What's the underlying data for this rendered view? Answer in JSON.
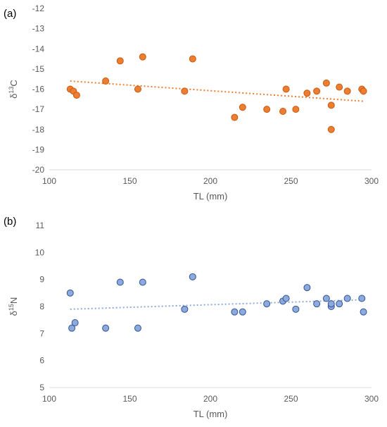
{
  "chart_data": [
    {
      "type": "scatter",
      "panel_label": "(a)",
      "xlabel": "TL (mm)",
      "ylabel": {
        "prefix": "δ",
        "sup": "13",
        "suffix": "C"
      },
      "xlim": [
        100,
        300
      ],
      "ylim": [
        -20,
        -12
      ],
      "xticks": [
        100,
        150,
        200,
        250,
        300
      ],
      "yticks": [
        -12,
        -13,
        -14,
        -15,
        -16,
        -17,
        -18,
        -19,
        -20
      ],
      "grid": false,
      "color": "#ED7D31",
      "stroke": "#C55A11",
      "trendline": {
        "type": "linear",
        "x": [
          113,
          295
        ],
        "y": [
          -15.6,
          -16.6
        ]
      },
      "series": [
        {
          "points": [
            [
              113,
              -16.0
            ],
            [
              115,
              -16.1
            ],
            [
              117,
              -16.3
            ],
            [
              135,
              -15.6
            ],
            [
              144,
              -14.6
            ],
            [
              155,
              -16.0
            ],
            [
              158,
              -14.4
            ],
            [
              184,
              -16.1
            ],
            [
              189,
              -14.5
            ],
            [
              215,
              -17.4
            ],
            [
              220,
              -16.9
            ],
            [
              235,
              -17.0
            ],
            [
              245,
              -17.1
            ],
            [
              247,
              -16.0
            ],
            [
              253,
              -17.0
            ],
            [
              260,
              -16.2
            ],
            [
              266,
              -16.1
            ],
            [
              272,
              -15.7
            ],
            [
              275,
              -16.8
            ],
            [
              275,
              -18.0
            ],
            [
              280,
              -15.9
            ],
            [
              285,
              -16.1
            ],
            [
              294,
              -16.0
            ],
            [
              295,
              -16.1
            ]
          ]
        }
      ]
    },
    {
      "type": "scatter",
      "panel_label": "(b)",
      "xlabel": "TL (mm)",
      "ylabel": {
        "prefix": "δ",
        "sup": "15",
        "suffix": "N"
      },
      "xlim": [
        100,
        300
      ],
      "ylim": [
        5,
        11
      ],
      "xticks": [
        100,
        150,
        200,
        250,
        300
      ],
      "yticks": [
        5,
        6,
        7,
        8,
        9,
        10,
        11
      ],
      "grid": false,
      "color": "#8EA9DB",
      "stroke": "#2F5597",
      "trendline": {
        "type": "linear",
        "x": [
          113,
          295
        ],
        "y": [
          7.9,
          8.25
        ]
      },
      "series": [
        {
          "points": [
            [
              113,
              8.5
            ],
            [
              114,
              7.2
            ],
            [
              116,
              7.4
            ],
            [
              135,
              7.2
            ],
            [
              144,
              8.9
            ],
            [
              155,
              7.2
            ],
            [
              158,
              8.9
            ],
            [
              184,
              7.9
            ],
            [
              189,
              9.1
            ],
            [
              215,
              7.8
            ],
            [
              220,
              7.8
            ],
            [
              235,
              8.1
            ],
            [
              245,
              8.2
            ],
            [
              247,
              8.3
            ],
            [
              253,
              7.9
            ],
            [
              260,
              8.7
            ],
            [
              266,
              8.1
            ],
            [
              272,
              8.3
            ],
            [
              275,
              8.0
            ],
            [
              275,
              8.1
            ],
            [
              280,
              8.1
            ],
            [
              285,
              8.3
            ],
            [
              294,
              8.3
            ],
            [
              295,
              7.8
            ]
          ]
        }
      ]
    }
  ]
}
